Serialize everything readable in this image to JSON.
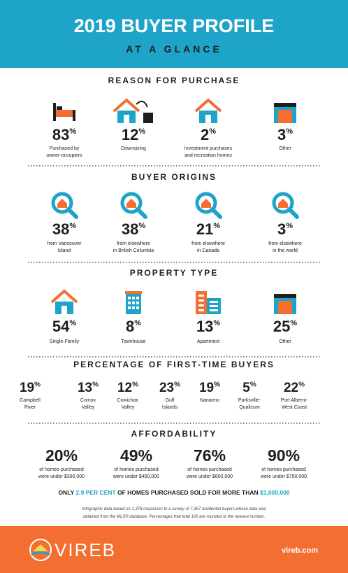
{
  "header": {
    "title": "2019 BUYER PROFILE",
    "subtitle": "AT A GLANCE"
  },
  "sections": [
    {
      "title": "REASON FOR PURCHASE",
      "items": [
        {
          "value": 83,
          "unit": "%",
          "label": [
            "Purchased by",
            "owner-occupiers"
          ]
        },
        {
          "value": 12,
          "unit": "%",
          "label": [
            "Downsizing"
          ]
        },
        {
          "value": 2,
          "unit": "%",
          "label": [
            "Investment purchases",
            "and recreation homes"
          ]
        },
        {
          "value": 3,
          "unit": "%",
          "label": [
            "Other"
          ]
        }
      ]
    },
    {
      "title": "BUYER ORIGINS",
      "items": [
        {
          "value": 38,
          "unit": "%",
          "label": [
            "from Vancouver",
            "Island"
          ]
        },
        {
          "value": 38,
          "unit": "%",
          "label": [
            "from elsewhere",
            "in British Columbia"
          ]
        },
        {
          "value": 21,
          "unit": "%",
          "label": [
            "from elsewhere",
            "in Canada"
          ]
        },
        {
          "value": 3,
          "unit": "%",
          "label": [
            "from elsewhere",
            "in the world"
          ]
        }
      ]
    },
    {
      "title": "PROPERTY TYPE",
      "items": [
        {
          "value": 54,
          "unit": "%",
          "label": [
            "Single-Family"
          ]
        },
        {
          "value": 8,
          "unit": "%",
          "label": [
            "Townhouse"
          ]
        },
        {
          "value": 13,
          "unit": "%",
          "label": [
            "Apartment"
          ]
        },
        {
          "value": 25,
          "unit": "%",
          "label": [
            "Other"
          ]
        }
      ]
    },
    {
      "title": "PERCENTAGE OF FIRST-TIME BUYERS",
      "items": [
        {
          "value": 19,
          "unit": "%",
          "label": [
            "Campbell",
            "River"
          ]
        },
        {
          "value": 13,
          "unit": "%",
          "label": [
            "Comox",
            "Valley"
          ]
        },
        {
          "value": 12,
          "unit": "%",
          "label": [
            "Cowichan",
            "Valley"
          ]
        },
        {
          "value": 23,
          "unit": "%",
          "label": [
            "Gulf",
            "Islands"
          ]
        },
        {
          "value": 19,
          "unit": "%",
          "label": [
            "Nanaimo"
          ]
        },
        {
          "value": 5,
          "unit": "%",
          "label": [
            "Parksville-",
            "Qualicum"
          ]
        },
        {
          "value": 22,
          "unit": "%",
          "label": [
            "Port Alberni-",
            "West Coast"
          ]
        }
      ]
    },
    {
      "title": "AFFORDABILITY",
      "items": [
        {
          "value": 20,
          "unit": "%",
          "label": [
            "of homes purchased",
            "were under $300,000"
          ]
        },
        {
          "value": 49,
          "unit": "%",
          "label": [
            "of homes purchased",
            "were under $450,000"
          ]
        },
        {
          "value": 76,
          "unit": "%",
          "label": [
            "of homes purchased",
            "were under $600,000"
          ]
        },
        {
          "value": 90,
          "unit": "%",
          "label": [
            "of homes purchased",
            "were under $750,000"
          ]
        }
      ]
    }
  ],
  "highlight": [
    "ONLY ",
    "2.9 PER CENT",
    " OF HOMES PURCHASED SOLD FOR MORE THAN ",
    "$1,000,000"
  ],
  "note": [
    "Infographic data based on 1,378 responses to a survey of 7,357 residential buyers whose data was",
    "obtained from the MLS® database. Percentages that total 100 are rounded to the nearest number."
  ],
  "footer": {
    "brand": "VIREB",
    "url": "vireb.com"
  }
}
